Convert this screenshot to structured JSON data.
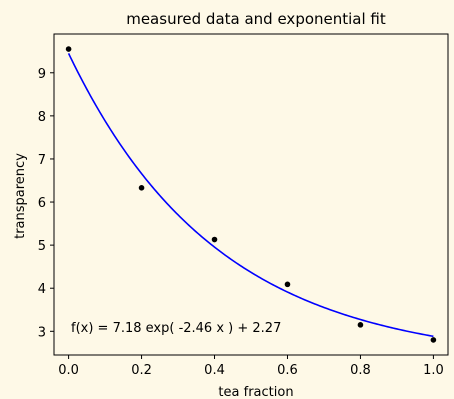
{
  "chart_data": {
    "type": "scatter",
    "title": "measured data and exponential fit",
    "xlabel": "tea fraction",
    "ylabel": "transparency",
    "xlim": [
      -0.04,
      1.04
    ],
    "ylim": [
      2.45,
      9.9
    ],
    "xticks": [
      0.0,
      0.2,
      0.4,
      0.6,
      0.8,
      1.0
    ],
    "xtick_labels": [
      "0.0",
      "0.2",
      "0.4",
      "0.6",
      "0.8",
      "1.0"
    ],
    "yticks": [
      3,
      4,
      5,
      6,
      7,
      8,
      9
    ],
    "ytick_labels": [
      "3",
      "4",
      "5",
      "6",
      "7",
      "8",
      "9"
    ],
    "grid": false,
    "series": [
      {
        "kind": "points",
        "color": "#000000",
        "x": [
          0.0,
          0.2,
          0.4,
          0.6,
          0.8,
          1.0
        ],
        "y": [
          9.55,
          6.33,
          5.13,
          4.09,
          3.15,
          2.8
        ]
      },
      {
        "kind": "fit-curve",
        "color": "#0000ff",
        "model": {
          "a": 7.18,
          "b": -2.46,
          "c": 2.27
        }
      }
    ],
    "annotation": "f(x) = 7.18 exp( -2.46 x ) + 2.27"
  },
  "colors": {
    "background": "#fef9e7",
    "axes": "#000000",
    "fit": "#0000ff",
    "points": "#000000"
  }
}
